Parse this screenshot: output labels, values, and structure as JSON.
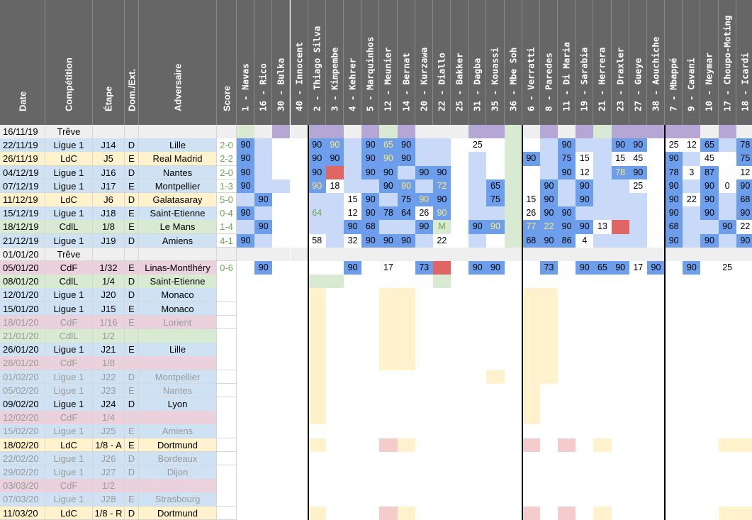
{
  "headers": [
    "Date",
    "Compétition",
    "Étape",
    "Dom./Ext.",
    "Adversaire",
    "Score"
  ],
  "players": [
    "1 - Navas",
    "16 - Rico",
    "30 - Bulka",
    "40 - Innocent",
    "2 - Thiago Silva",
    "3 - Kimpembe",
    "4 - Kehrer",
    "5 - Marquinhos",
    "12 - Meunier",
    "14 - Bernat",
    "20 - Kurzawa",
    "22 - Diallo",
    "25 - Bakker",
    "31 - Dagba",
    "35 - Kouassi",
    "36 - Mbe Soh",
    "6 - Verratti",
    "8 - Paredes",
    "11 - Di Maria",
    "19 - Sarabia",
    "21 - Herrera",
    "23 - Draxler",
    "27 - Gueye",
    "38 - Aouchiche",
    "7 - Mbappé",
    "9 - Cavani",
    "10 - Neymar",
    "17 - Choupo-Moting",
    "18 - Icardi"
  ],
  "colors": {
    "header": "#666666",
    "ligue1": "#cfe2f3",
    "ldc": "#fff2cc",
    "cdf": "#ead1dc",
    "cdl": "#d9ead3",
    "treve": "#efefef",
    "played": "#6d9eeb",
    "sub": "#c9daf8",
    "bench": "#d9ead3",
    "injured": "#b4a7d6",
    "red": "#e06666",
    "score_win": "#6aa84f",
    "pink_future": "#f4cccc",
    "yellow_future": "#fff2cc"
  },
  "rows": [
    {
      "date": "16/11/19",
      "comp": "Trêve",
      "etape": "",
      "dom": "",
      "adv": "",
      "score": "",
      "type": "treve",
      "cells": [
        "b",
        "",
        "i",
        "",
        "i",
        "i",
        "",
        "i",
        "b",
        "i",
        "",
        "",
        "",
        "i",
        "i",
        "b",
        "",
        "i",
        "",
        "i",
        "b",
        "i",
        "i",
        "i",
        "i",
        "i",
        "",
        "i",
        ""
      ]
    },
    {
      "date": "22/11/19",
      "comp": "Ligue 1",
      "etape": "J14",
      "dom": "D",
      "adv": "Lille",
      "score": "2-0",
      "type": "ligue1",
      "cells": [
        "90",
        "s",
        "",
        "",
        "90",
        "90y",
        "s",
        "90",
        "65y",
        "90",
        "s",
        "s",
        "",
        "25",
        "",
        "b",
        "",
        "s",
        "90",
        "s",
        "s",
        "90",
        "90",
        "",
        "25",
        "12",
        "65",
        "s",
        "78"
      ]
    },
    {
      "date": "26/11/19",
      "comp": "LdC",
      "etape": "J5",
      "dom": "E",
      "adv": "Real Madrid",
      "score": "2-2",
      "type": "ldc",
      "cells": [
        "90",
        "s",
        "",
        "",
        "90",
        "90",
        "s",
        "90",
        "90y",
        "90",
        "s",
        "s",
        "",
        "s",
        "",
        "b",
        "90",
        "s",
        "75",
        "15",
        "s",
        "15",
        "45",
        "",
        "90",
        "s",
        "45",
        "",
        "75"
      ]
    },
    {
      "date": "04/12/19",
      "comp": "Ligue 1",
      "etape": "J16",
      "dom": "D",
      "adv": "Nantes",
      "score": "2-0",
      "type": "ligue1",
      "cells": [
        "90",
        "s",
        "",
        "",
        "90",
        "R",
        "s",
        "90",
        "90",
        "s",
        "90",
        "90",
        "",
        "s",
        "",
        "b",
        "",
        "s",
        "90",
        "12",
        "s",
        "78y",
        "90",
        "",
        "78",
        "3",
        "87",
        "",
        "12"
      ]
    },
    {
      "date": "07/12/19",
      "comp": "Ligue 1",
      "etape": "J17",
      "dom": "E",
      "adv": "Montpellier",
      "score": "1-3",
      "type": "ligue1",
      "cells": [
        "90",
        "s",
        "s",
        "",
        "90y",
        "18",
        "s",
        "s",
        "90",
        "90y",
        "s",
        "72y",
        "",
        "s",
        "65",
        "b",
        "",
        "90",
        "s",
        "90",
        "s",
        "s",
        "25",
        "",
        "90",
        "s",
        "90",
        "0",
        "90"
      ]
    },
    {
      "date": "11/12/19",
      "comp": "LdC",
      "etape": "J6",
      "dom": "D",
      "adv": "Galatasaray",
      "score": "5-0",
      "type": "ldc",
      "cells": [
        "s",
        "90",
        "",
        "",
        "s",
        "s",
        "15",
        "90",
        "s",
        "75",
        "90y",
        "90",
        "",
        "s",
        "75",
        "b",
        "15",
        "90",
        "s",
        "90",
        "s",
        "s",
        "s",
        "",
        "90",
        "22",
        "90",
        "s",
        "68"
      ]
    },
    {
      "date": "15/12/19",
      "comp": "Ligue 1",
      "etape": "J18",
      "dom": "E",
      "adv": "Saint-Etienne",
      "score": "0-4",
      "type": "ligue1",
      "cells": [
        "90",
        "s",
        "",
        "",
        "64g",
        "s",
        "12",
        "90",
        "78",
        "64",
        "26",
        "90y",
        "",
        "s",
        "s",
        "b",
        "26",
        "90",
        "90",
        "s",
        "s",
        "s",
        "s",
        "",
        "90",
        "s",
        "90",
        "s",
        "90"
      ]
    },
    {
      "date": "18/12/19",
      "comp": "CdlL",
      "etape": "1/8",
      "dom": "E",
      "adv": "Le Mans",
      "score": "1-4",
      "type": "cdl",
      "cells": [
        "s",
        "90",
        "",
        "",
        "s",
        "s",
        "90",
        "68",
        "s",
        "s",
        "90",
        "M",
        "",
        "90",
        "90y",
        "b",
        "77y",
        "22y",
        "90",
        "90",
        "13",
        "R",
        "s",
        "",
        "68",
        "s",
        "s",
        "90",
        "22"
      ]
    },
    {
      "date": "21/12/19",
      "comp": "Ligue 1",
      "etape": "J19",
      "dom": "D",
      "adv": "Amiens",
      "score": "4-1",
      "type": "ligue1",
      "cells": [
        "90",
        "s",
        "",
        "",
        "58",
        "s",
        "32",
        "90",
        "90",
        "90",
        "s",
        "22",
        "",
        "s",
        "",
        "b",
        "68",
        "90",
        "86",
        "4",
        "s",
        "s",
        "s",
        "",
        "90",
        "s",
        "90",
        "s",
        "90"
      ]
    },
    {
      "date": "01/01/20",
      "comp": "Trêve",
      "etape": "",
      "dom": "",
      "adv": "",
      "score": "",
      "type": "treve",
      "cells": [
        "",
        "",
        "",
        "",
        "",
        "",
        "",
        "",
        "",
        "",
        "",
        "",
        "",
        "",
        "",
        "",
        "",
        "",
        "",
        "",
        "",
        "",
        "",
        "",
        "",
        "",
        "",
        "",
        ""
      ]
    },
    {
      "date": "05/01/20",
      "comp": "CdF",
      "etape": "1/32",
      "dom": "E",
      "adv": "Linas-Montlhéry",
      "score": "0-6",
      "type": "cdf",
      "cells": [
        "",
        "90",
        "",
        "",
        "",
        "",
        "90",
        "",
        "17",
        "",
        "73",
        "R",
        "",
        "90",
        "90",
        "",
        "",
        "73",
        "",
        "90",
        "65",
        "90",
        "17",
        "90",
        "",
        "90",
        "",
        "25",
        ""
      ]
    },
    {
      "date": "08/01/20",
      "comp": "CdlL",
      "etape": "1/4",
      "dom": "D",
      "adv": "Saint-Etienne",
      "score": "",
      "type": "cdl",
      "cells": [
        "",
        "",
        "",
        "",
        "b",
        "b",
        "",
        "",
        "",
        "",
        "",
        "b",
        "",
        "",
        "",
        "",
        "",
        "",
        "",
        "",
        "",
        "",
        "",
        "",
        "",
        "",
        "",
        "",
        ""
      ]
    },
    {
      "date": "12/01/20",
      "comp": "Ligue 1",
      "etape": "J20",
      "dom": "D",
      "adv": "Monaco",
      "score": "",
      "type": "ligue1",
      "cells": [
        "",
        "",
        "",
        "",
        "y",
        "",
        "",
        "",
        "y",
        "y",
        "",
        "",
        "",
        "",
        "",
        "",
        "y",
        "y",
        "",
        "",
        "",
        "",
        "",
        "",
        "",
        "",
        "",
        "",
        ""
      ]
    },
    {
      "date": "15/01/20",
      "comp": "Ligue 1",
      "etape": "J15",
      "dom": "E",
      "adv": "Monaco",
      "score": "",
      "type": "ligue1",
      "cells": [
        "",
        "",
        "",
        "",
        "y",
        "",
        "",
        "",
        "y",
        "y",
        "",
        "",
        "",
        "",
        "",
        "",
        "y",
        "y",
        "",
        "",
        "",
        "",
        "",
        "",
        "",
        "",
        "",
        "",
        ""
      ]
    },
    {
      "date": "18/01/20",
      "comp": "CdF",
      "etape": "1/16",
      "dom": "E",
      "adv": "Lorient",
      "score": "",
      "type": "cdf",
      "faded": true,
      "cells": [
        "",
        "",
        "",
        "",
        "y",
        "",
        "",
        "",
        "y",
        "y",
        "",
        "",
        "",
        "",
        "",
        "",
        "y",
        "y",
        "",
        "",
        "",
        "",
        "",
        "",
        "",
        "",
        "",
        "",
        ""
      ]
    },
    {
      "date": "21/01/20",
      "comp": "CdlL",
      "etape": "1/2",
      "dom": "",
      "adv": "",
      "score": "",
      "type": "cdl",
      "faded": true,
      "cells": [
        "",
        "",
        "",
        "",
        "y",
        "",
        "",
        "",
        "y",
        "y",
        "",
        "",
        "",
        "",
        "",
        "",
        "y",
        "y",
        "",
        "",
        "",
        "",
        "",
        "",
        "",
        "",
        "",
        "",
        ""
      ]
    },
    {
      "date": "26/01/20",
      "comp": "Ligue 1",
      "etape": "J21",
      "dom": "E",
      "adv": "Lille",
      "score": "",
      "type": "ligue1",
      "cells": [
        "",
        "",
        "",
        "",
        "y",
        "",
        "",
        "",
        "y",
        "y",
        "",
        "",
        "",
        "",
        "",
        "",
        "y",
        "y",
        "",
        "",
        "",
        "",
        "",
        "",
        "",
        "",
        "",
        "",
        ""
      ]
    },
    {
      "date": "28/01/20",
      "comp": "CdF",
      "etape": "1/8",
      "dom": "",
      "adv": "",
      "score": "",
      "type": "cdf",
      "faded": true,
      "cells": [
        "",
        "",
        "",
        "",
        "y",
        "",
        "",
        "",
        "y",
        "y",
        "",
        "",
        "",
        "",
        "",
        "",
        "y",
        "y",
        "",
        "",
        "",
        "",
        "",
        "",
        "",
        "",
        "",
        "",
        ""
      ]
    },
    {
      "date": "01/02/20",
      "comp": "Ligue 1",
      "etape": "J22",
      "dom": "D",
      "adv": "Montpellier",
      "score": "",
      "type": "ligue1",
      "faded": true,
      "cells": [
        "",
        "",
        "",
        "",
        "y",
        "",
        "",
        "",
        "",
        "",
        "",
        "",
        "",
        "",
        "y",
        "",
        "y",
        "y",
        "",
        "",
        "",
        "",
        "",
        "",
        "",
        "",
        "",
        "",
        ""
      ]
    },
    {
      "date": "05/02/20",
      "comp": "Ligue 1",
      "etape": "J23",
      "dom": "E",
      "adv": "Nantes",
      "score": "",
      "type": "ligue1",
      "faded": true,
      "cells": [
        "",
        "",
        "",
        "",
        "y",
        "",
        "",
        "",
        "",
        "",
        "",
        "",
        "",
        "",
        "",
        "",
        "y",
        "",
        "",
        "",
        "",
        "",
        "",
        "",
        "",
        "",
        "",
        "",
        ""
      ]
    },
    {
      "date": "09/02/20",
      "comp": "Ligue 1",
      "etape": "J24",
      "dom": "D",
      "adv": "Lyon",
      "score": "",
      "type": "ligue1",
      "cells": [
        "",
        "",
        "",
        "",
        "y",
        "",
        "",
        "",
        "",
        "",
        "",
        "",
        "",
        "",
        "",
        "",
        "y",
        "",
        "",
        "",
        "",
        "",
        "",
        "",
        "",
        "",
        "",
        "",
        ""
      ]
    },
    {
      "date": "12/02/20",
      "comp": "CdF",
      "etape": "1/4",
      "dom": "",
      "adv": "",
      "score": "",
      "type": "cdf",
      "faded": true,
      "cells": [
        "",
        "",
        "",
        "",
        "y",
        "",
        "",
        "",
        "",
        "",
        "",
        "",
        "",
        "",
        "",
        "",
        "y",
        "",
        "",
        "",
        "",
        "",
        "",
        "",
        "",
        "",
        "",
        "",
        ""
      ]
    },
    {
      "date": "15/02/20",
      "comp": "Ligue 1",
      "etape": "J25",
      "dom": "E",
      "adv": "Amiens",
      "score": "",
      "type": "ligue1",
      "faded": true,
      "cells": [
        "",
        "",
        "",
        "",
        "",
        "",
        "",
        "",
        "",
        "",
        "",
        "",
        "",
        "",
        "",
        "",
        "",
        "",
        "",
        "",
        "",
        "",
        "",
        "",
        "",
        "",
        "",
        "",
        ""
      ]
    },
    {
      "date": "18/02/20",
      "comp": "LdC",
      "etape": "1/8 - A",
      "dom": "E",
      "adv": "Dortmund",
      "score": "",
      "type": "ldc",
      "cells": [
        "",
        "",
        "",
        "",
        "y",
        "",
        "",
        "",
        "p",
        "y",
        "",
        "",
        "",
        "",
        "",
        "",
        "p",
        "",
        "p",
        "",
        "y",
        "",
        "",
        "",
        "",
        "",
        "",
        "y",
        "y"
      ]
    },
    {
      "date": "22/02/20",
      "comp": "Ligue 1",
      "etape": "J26",
      "dom": "D",
      "adv": "Bordeaux",
      "score": "",
      "type": "ligue1",
      "faded": true,
      "cells": [
        "",
        "",
        "",
        "",
        "",
        "",
        "",
        "",
        "",
        "",
        "",
        "",
        "",
        "",
        "",
        "",
        "",
        "",
        "",
        "",
        "",
        "",
        "",
        "",
        "",
        "",
        "",
        "",
        ""
      ]
    },
    {
      "date": "29/02/20",
      "comp": "Ligue 1",
      "etape": "J27",
      "dom": "D",
      "adv": "Dijon",
      "score": "",
      "type": "ligue1",
      "faded": true,
      "cells": [
        "",
        "",
        "",
        "",
        "",
        "",
        "",
        "",
        "",
        "",
        "",
        "",
        "",
        "",
        "",
        "",
        "",
        "",
        "",
        "",
        "",
        "",
        "",
        "",
        "",
        "",
        "",
        "",
        ""
      ]
    },
    {
      "date": "03/03/20",
      "comp": "CdF",
      "etape": "1/2",
      "dom": "",
      "adv": "",
      "score": "",
      "type": "cdf",
      "faded": true,
      "cells": [
        "",
        "",
        "",
        "",
        "",
        "",
        "",
        "",
        "",
        "",
        "",
        "",
        "",
        "",
        "",
        "",
        "",
        "",
        "",
        "",
        "",
        "",
        "",
        "",
        "",
        "",
        "",
        "",
        ""
      ]
    },
    {
      "date": "07/03/20",
      "comp": "Ligue 1",
      "etape": "J28",
      "dom": "E",
      "adv": "Strasbourg",
      "score": "",
      "type": "ligue1",
      "faded": true,
      "cells": [
        "",
        "",
        "",
        "",
        "",
        "",
        "",
        "",
        "",
        "",
        "",
        "",
        "",
        "",
        "",
        "",
        "",
        "",
        "",
        "",
        "",
        "",
        "",
        "",
        "",
        "",
        "",
        "",
        ""
      ]
    },
    {
      "date": "11/03/20",
      "comp": "LdC",
      "etape": "1/8 - R",
      "dom": "D",
      "adv": "Dortmund",
      "score": "",
      "type": "ldc",
      "cells": [
        "",
        "",
        "",
        "",
        "y",
        "",
        "",
        "",
        "p",
        "y",
        "",
        "",
        "",
        "",
        "",
        "",
        "p",
        "",
        "p",
        "",
        "y",
        "",
        "",
        "",
        "",
        "",
        "",
        "y",
        "y"
      ]
    }
  ]
}
